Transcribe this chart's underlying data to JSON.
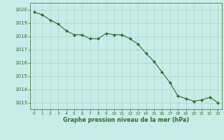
{
  "x": [
    0,
    1,
    2,
    3,
    4,
    5,
    6,
    7,
    8,
    9,
    10,
    11,
    12,
    13,
    14,
    15,
    16,
    17,
    18,
    19,
    20,
    21,
    22,
    23
  ],
  "y": [
    1019.8,
    1019.6,
    1019.2,
    1018.9,
    1018.4,
    1018.1,
    1018.1,
    1017.8,
    1017.8,
    1018.2,
    1018.1,
    1018.1,
    1017.8,
    1017.4,
    1016.7,
    1016.1,
    1015.3,
    1014.5,
    1013.5,
    1013.3,
    1013.1,
    1013.2,
    1013.4,
    1013.0
  ],
  "line_color": "#2d6a2d",
  "marker_color": "#2d6a2d",
  "bg_color": "#c8ece8",
  "grid_color": "#a8d5cf",
  "xlabel": "Graphe pression niveau de la mer (hPa)",
  "xlabel_color": "#2d6a2d",
  "tick_color": "#2d6a2d",
  "ylim_min": 1012.5,
  "ylim_max": 1020.5,
  "yticks": [
    1013,
    1014,
    1015,
    1016,
    1017,
    1018,
    1019,
    1020
  ]
}
